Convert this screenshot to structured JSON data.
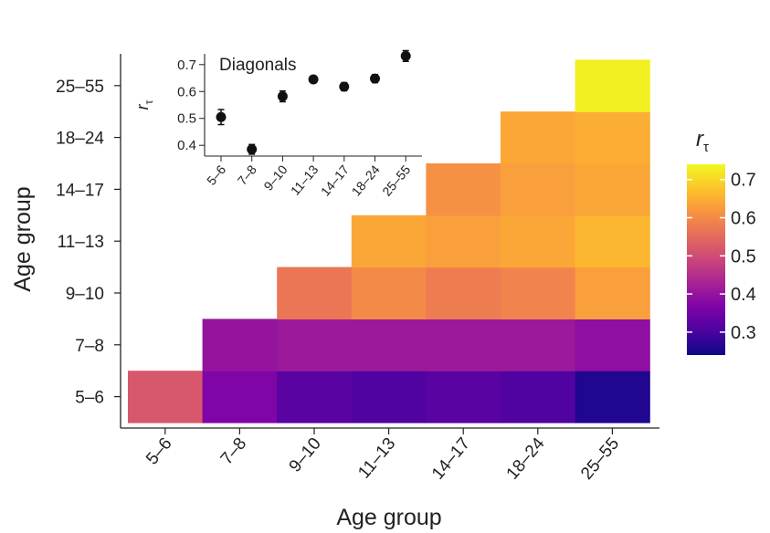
{
  "chart_data": [
    {
      "type": "heatmap",
      "xlabel": "Age group",
      "ylabel": "Age group",
      "categories": [
        "5–6",
        "7–8",
        "9–10",
        "11–13",
        "14–17",
        "18–24",
        "25–55"
      ],
      "rows": [
        {
          "label": "5–6",
          "values": [
            0.52,
            0.37,
            0.32,
            0.31,
            0.32,
            0.31,
            0.26
          ]
        },
        {
          "label": "7–8",
          "values": [
            null,
            0.4,
            0.41,
            0.41,
            0.41,
            0.41,
            0.39
          ]
        },
        {
          "label": "9–10",
          "values": [
            null,
            null,
            0.57,
            0.6,
            0.58,
            0.59,
            0.63
          ]
        },
        {
          "label": "11–13",
          "values": [
            null,
            null,
            null,
            0.64,
            0.63,
            0.64,
            0.66
          ]
        },
        {
          "label": "14–17",
          "values": [
            null,
            null,
            null,
            null,
            0.61,
            0.63,
            0.64
          ]
        },
        {
          "label": "18–24",
          "values": [
            null,
            null,
            null,
            null,
            null,
            0.64,
            0.65
          ]
        },
        {
          "label": "25–55",
          "values": [
            null,
            null,
            null,
            null,
            null,
            null,
            0.73
          ]
        }
      ],
      "colorbar": {
        "title": "r",
        "subscript": "τ",
        "range": [
          0.24,
          0.74
        ],
        "ticks": [
          0.3,
          0.4,
          0.5,
          0.6,
          0.7
        ],
        "tick_labels": [
          "0.3",
          "0.4",
          "0.5",
          "0.6",
          "0.7"
        ]
      }
    },
    {
      "type": "scatter",
      "title": "Diagonals",
      "ylabel": "r",
      "ylabel_subscript": "τ",
      "categories": [
        "5–6",
        "7–8",
        "9–10",
        "11–13",
        "14–17",
        "18–24",
        "25–55"
      ],
      "values": [
        0.505,
        0.385,
        0.582,
        0.645,
        0.618,
        0.648,
        0.732
      ],
      "errors": [
        0.028,
        0.018,
        0.02,
        0.012,
        0.015,
        0.015,
        0.02
      ],
      "ylim": [
        0.36,
        0.74
      ],
      "yticks": [
        0.4,
        0.5,
        0.6,
        0.7
      ],
      "ytick_labels": [
        "0.4",
        "0.5",
        "0.6",
        "0.7"
      ]
    }
  ]
}
